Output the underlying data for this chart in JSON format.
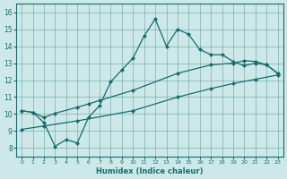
{
  "xlabel": "Humidex (Indice chaleur)",
  "xlim": [
    -0.5,
    23.5
  ],
  "ylim": [
    7.5,
    16.5
  ],
  "xticks": [
    0,
    1,
    2,
    3,
    4,
    5,
    6,
    7,
    8,
    9,
    10,
    11,
    12,
    13,
    14,
    15,
    16,
    17,
    18,
    19,
    20,
    21,
    22,
    23
  ],
  "yticks": [
    8,
    9,
    10,
    11,
    12,
    13,
    14,
    15,
    16
  ],
  "bg_color": "#cce8e8",
  "line_color": "#1a6b6b",
  "line1_x": [
    0,
    1,
    2,
    3,
    4,
    5,
    6,
    7,
    8,
    9,
    10,
    11,
    12,
    13,
    14,
    15,
    16,
    17,
    18,
    19,
    20,
    21,
    22,
    23
  ],
  "line1_y": [
    10.2,
    10.1,
    9.5,
    8.1,
    8.5,
    8.3,
    9.8,
    10.5,
    11.9,
    12.6,
    13.3,
    14.6,
    15.6,
    14.0,
    15.0,
    14.7,
    13.8,
    13.5,
    13.5,
    13.1,
    12.85,
    13.0,
    12.9,
    12.4
  ],
  "line2_x": [
    0,
    1,
    2,
    3,
    5,
    6,
    7,
    10,
    14,
    17,
    19,
    20,
    21,
    22,
    23
  ],
  "line2_y": [
    10.2,
    10.1,
    9.8,
    10.05,
    10.4,
    10.6,
    10.8,
    11.4,
    12.4,
    12.9,
    13.0,
    13.15,
    13.1,
    12.9,
    12.4
  ],
  "line3_x": [
    0,
    2,
    5,
    10,
    14,
    17,
    19,
    21,
    23
  ],
  "line3_y": [
    9.1,
    9.3,
    9.6,
    10.2,
    11.0,
    11.5,
    11.8,
    12.05,
    12.3
  ]
}
